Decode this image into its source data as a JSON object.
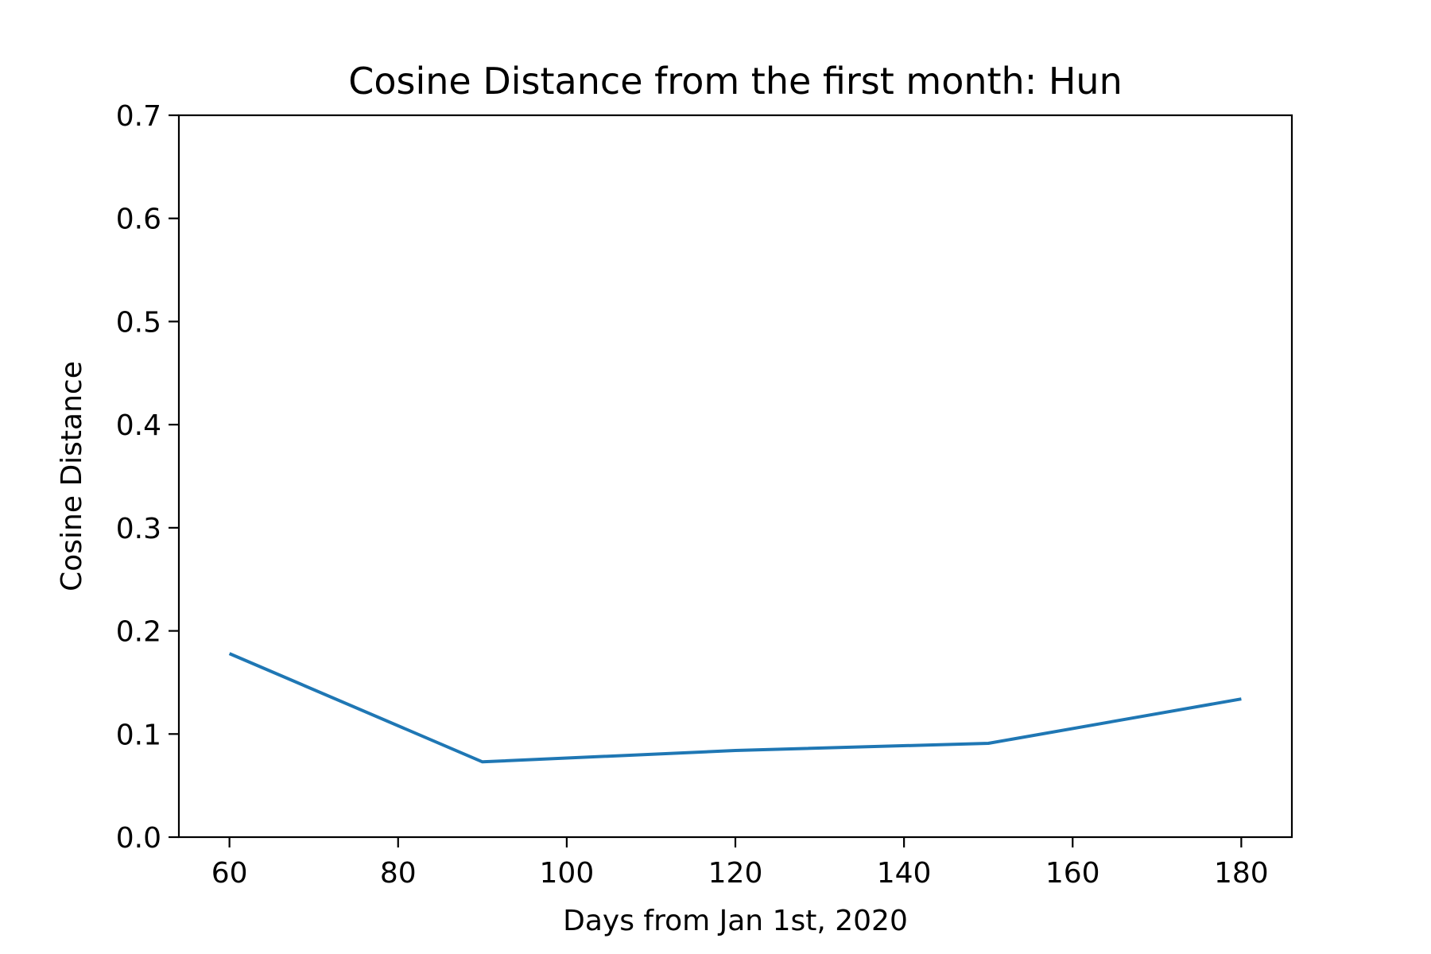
{
  "chart_data": {
    "type": "line",
    "title": "Cosine Distance from the first month: Hun",
    "xlabel": "Days from Jan 1st, 2020",
    "ylabel": "Cosine Distance",
    "x": [
      60,
      90,
      120,
      150,
      180
    ],
    "series": [
      {
        "values": [
          0.178,
          0.073,
          0.084,
          0.091,
          0.134
        ],
        "color": "#1f77b4"
      }
    ],
    "xlim": [
      54,
      186
    ],
    "ylim": [
      0,
      0.7
    ],
    "x_ticks": [
      60,
      80,
      100,
      120,
      140,
      160,
      180
    ],
    "y_ticks": [
      0.0,
      0.1,
      0.2,
      0.3,
      0.4,
      0.5,
      0.6,
      0.7
    ],
    "x_tick_labels": [
      "60",
      "80",
      "100",
      "120",
      "140",
      "160",
      "180"
    ],
    "y_tick_labels": [
      "0.0",
      "0.1",
      "0.2",
      "0.3",
      "0.4",
      "0.5",
      "0.6",
      "0.7"
    ],
    "grid": false,
    "legend": "none"
  }
}
